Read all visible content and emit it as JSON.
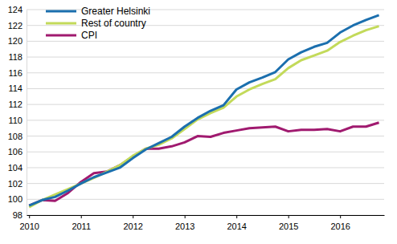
{
  "chart_data": {
    "type": "line",
    "x": [
      2010,
      2010.25,
      2010.5,
      2010.75,
      2011,
      2011.25,
      2011.5,
      2011.75,
      2012,
      2012.25,
      2012.5,
      2012.75,
      2013,
      2013.25,
      2013.5,
      2013.75,
      2014,
      2014.25,
      2014.5,
      2014.75,
      2015,
      2015.25,
      2015.5,
      2015.75,
      2016,
      2016.25,
      2016.5,
      2016.75
    ],
    "series": [
      {
        "name": "Greater Helsinki",
        "color": "#1b6fae",
        "values": [
          99.2,
          99.9,
          100.3,
          101.1,
          102.0,
          102.8,
          103.4,
          104.0,
          105.2,
          106.3,
          107.1,
          107.9,
          109.2,
          110.3,
          111.2,
          111.9,
          113.9,
          114.8,
          115.4,
          116.1,
          117.7,
          118.6,
          119.3,
          119.8,
          121.1,
          122.0,
          122.7,
          123.3
        ]
      },
      {
        "name": "Rest of country",
        "color": "#c3da5a",
        "values": [
          99.0,
          99.9,
          100.6,
          101.3,
          102.0,
          102.7,
          103.5,
          104.3,
          105.5,
          106.4,
          106.9,
          107.7,
          108.9,
          110.1,
          110.9,
          111.6,
          113.0,
          113.9,
          114.6,
          115.2,
          116.6,
          117.6,
          118.2,
          118.8,
          119.9,
          120.7,
          121.4,
          121.9
        ]
      },
      {
        "name": "CPI",
        "color": "#a01a6f",
        "values": [
          99.2,
          99.9,
          99.8,
          100.8,
          102.2,
          103.3,
          103.5,
          104.3,
          105.4,
          106.4,
          106.4,
          106.7,
          107.2,
          108.0,
          107.9,
          108.4,
          108.7,
          109.0,
          109.1,
          109.2,
          108.6,
          108.8,
          108.8,
          108.9,
          108.6,
          109.2,
          109.2,
          109.7
        ]
      }
    ],
    "xlim": [
      2009.95,
      2016.85
    ],
    "xticks": [
      2010,
      2011,
      2012,
      2013,
      2014,
      2015,
      2016
    ],
    "ylim": [
      98,
      124
    ],
    "yticks": [
      98,
      100,
      102,
      104,
      106,
      108,
      110,
      112,
      114,
      116,
      118,
      120,
      122,
      124
    ],
    "grid": true,
    "legend": "upper left"
  }
}
